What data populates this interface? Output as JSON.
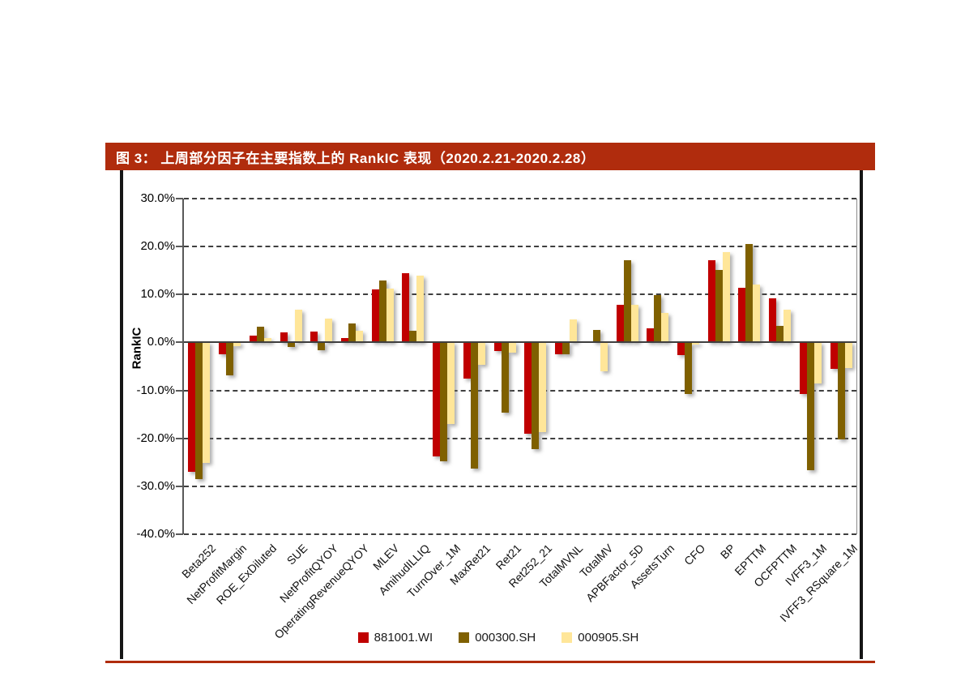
{
  "page": {
    "figure_title": "图 3： 上周部分因子在主要指数上的 RankIC 表现（2020.2.21-2020.2.28）",
    "header_bg": "#B02C0D",
    "rule_color": "#B02C0D"
  },
  "chart_data": {
    "type": "bar",
    "title": "上周部分因子在主要指数上的 RankIC 表现（2020.2.21-2020.2.28）",
    "xlabel": "",
    "ylabel": "RankIC",
    "ylim": [
      -40,
      30
    ],
    "ytick_step": 10,
    "ytick_format": "0.0%",
    "grid": "horizontal-dashed",
    "legend_position": "bottom",
    "categories": [
      "Beta252",
      "NetProfitMargin",
      "ROE_ExDiluted",
      "SUE",
      "NetProfitQYOY",
      "OperatingRevenueQYOY",
      "MLEV",
      "AmihudILLIQ",
      "TurnOver_1M",
      "MaxRet21",
      "Ret21",
      "Ret252_21",
      "TotalMVNL",
      "TotalMV",
      "APBFactor_5D",
      "AssetsTurn",
      "CFO",
      "BP",
      "EPTTM",
      "OCFPTTM",
      "IVFF3_1M",
      "IVFF3_RSquare_1M"
    ],
    "series": [
      {
        "name": "881001.WI",
        "color": "#C00000",
        "values": [
          -27.0,
          -2.5,
          1.4,
          2.1,
          2.3,
          1.0,
          11.0,
          14.5,
          -23.8,
          -7.6,
          -1.8,
          -19.0,
          -2.4,
          0.0,
          7.8,
          3.0,
          -2.6,
          17.1,
          11.4,
          9.2,
          -10.8,
          -5.5
        ]
      },
      {
        "name": "000300.SH",
        "color": "#7F6000",
        "values": [
          -28.5,
          -6.8,
          3.3,
          -1.0,
          -1.7,
          4.0,
          12.9,
          2.4,
          -24.8,
          -26.3,
          -14.6,
          -22.3,
          -2.5,
          2.6,
          17.2,
          9.9,
          -10.8,
          15.1,
          20.5,
          3.4,
          -26.7,
          -20.3
        ]
      },
      {
        "name": "000905.SH",
        "color": "#FFE699",
        "values": [
          -25.2,
          -0.7,
          0.9,
          6.9,
          5.0,
          2.4,
          11.3,
          14.0,
          -17.0,
          -4.6,
          -2.2,
          -18.7,
          4.8,
          -6.0,
          7.9,
          6.2,
          -0.5,
          18.9,
          12.0,
          6.8,
          -8.5,
          -5.3
        ]
      }
    ]
  }
}
